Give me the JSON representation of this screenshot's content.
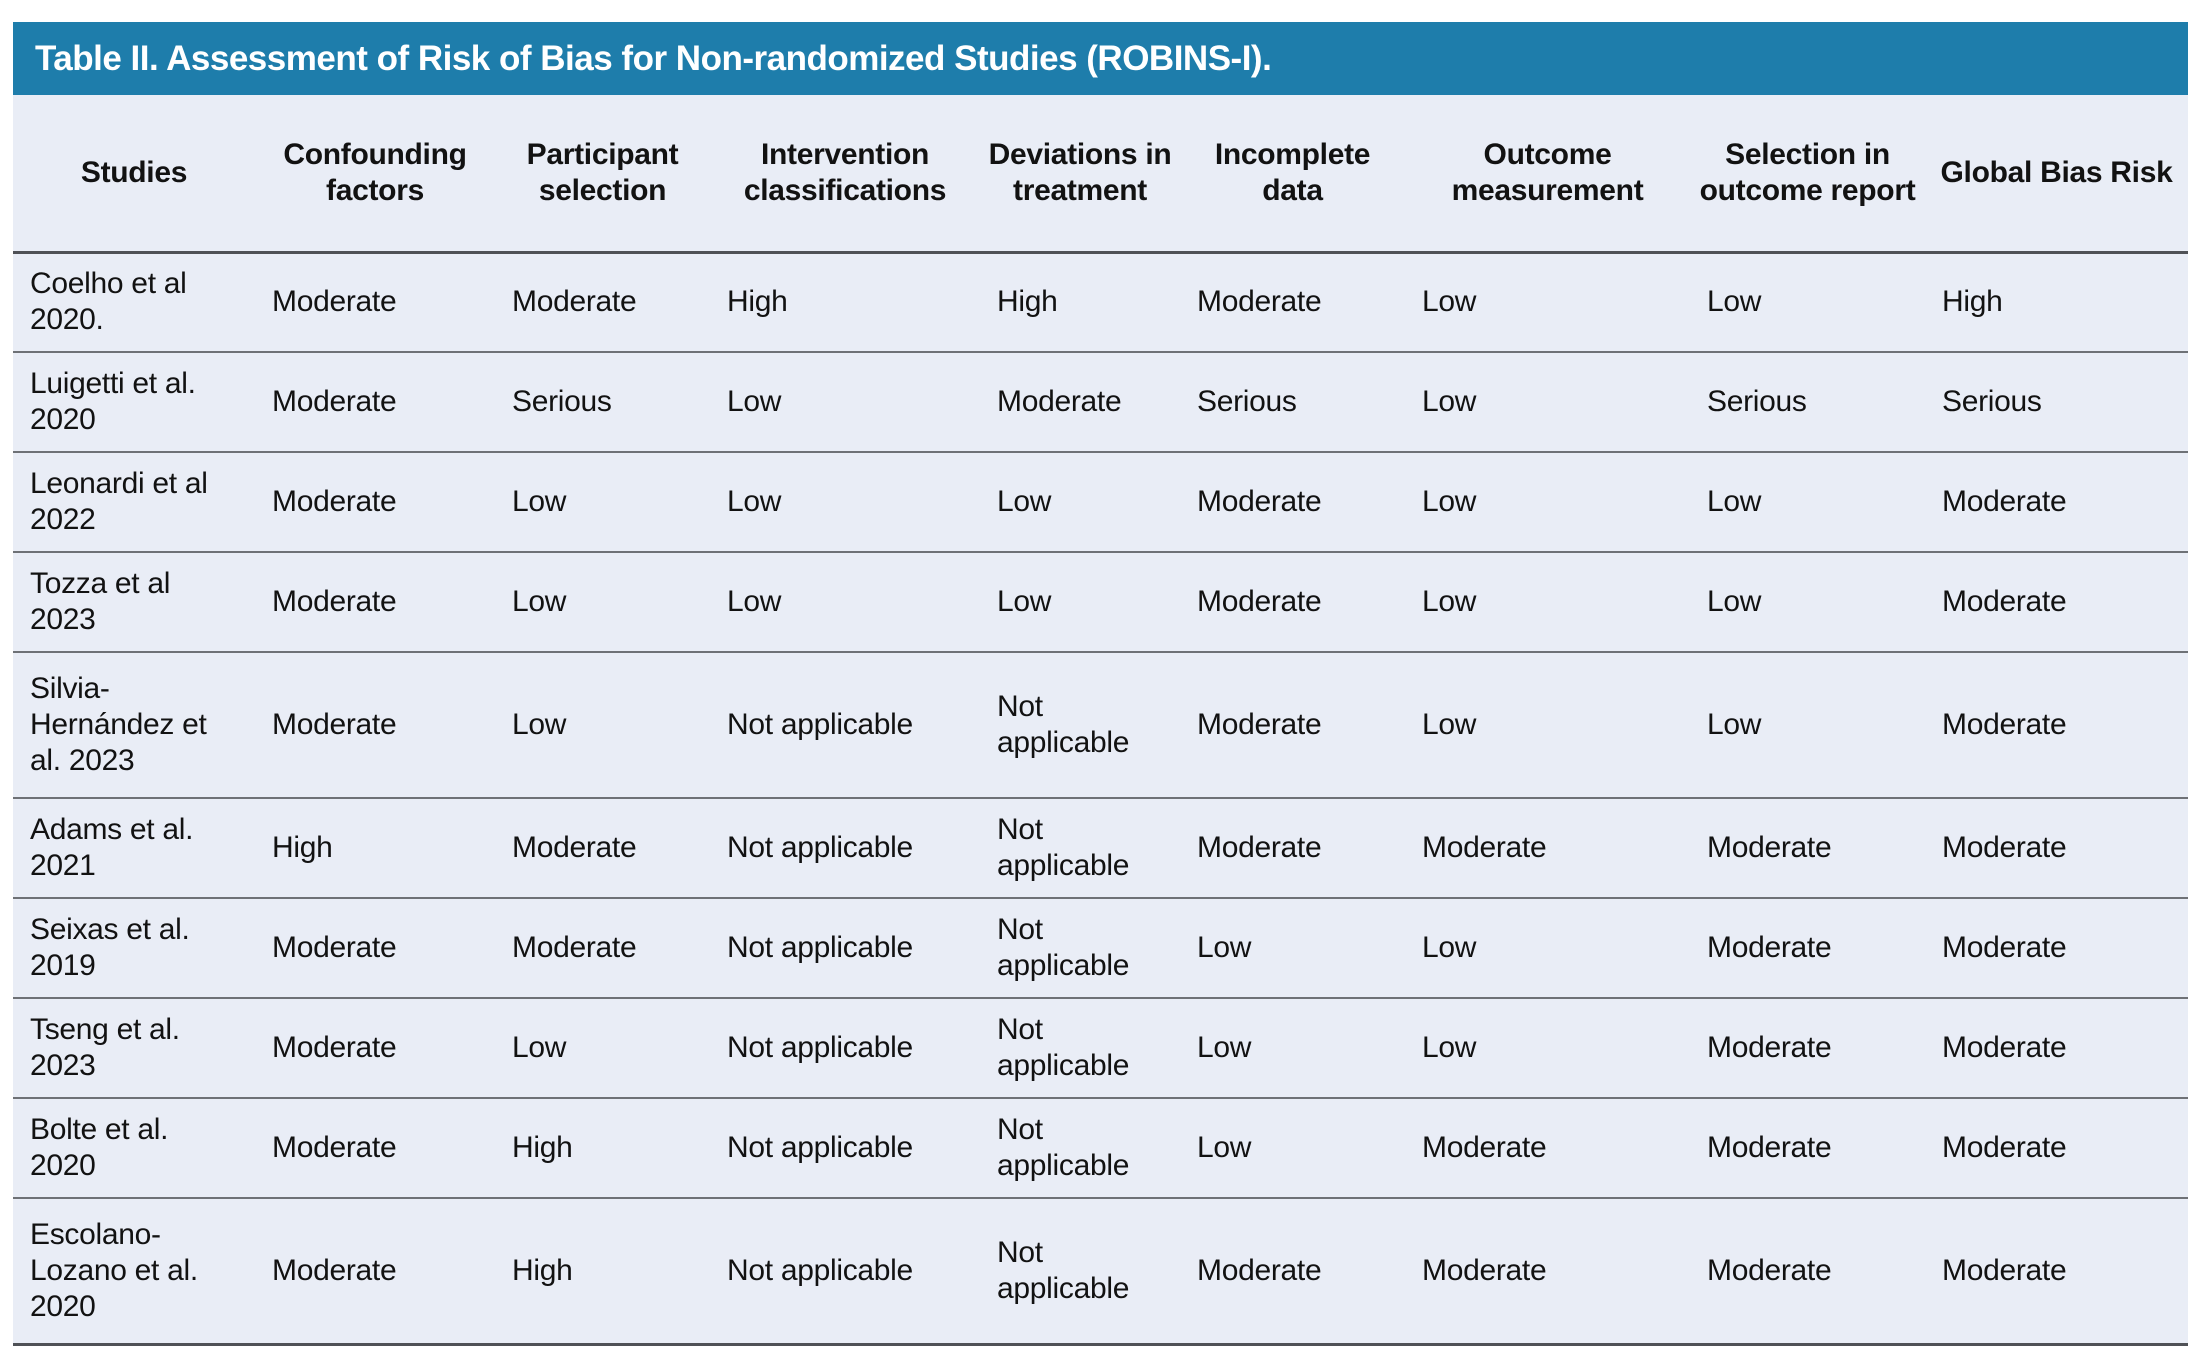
{
  "title": "Table II. Assessment of Risk of Bias for Non-randomized Studies (ROBINS-I).",
  "colors": {
    "header_bar": "#1e7dab",
    "table_bg": "#e9edf6",
    "text": "#121212",
    "title_text": "#ffffff",
    "separator": "#6e7176",
    "separator_strong": "#4f5156"
  },
  "table": {
    "columns": [
      "Studies",
      "Confounding factors",
      "Participant selection",
      "Intervention classifications",
      "Deviations in treatment",
      "Incomplete data",
      "Outcome measurement",
      "Selection in outcome report",
      "Global Bias Risk"
    ],
    "rows": [
      {
        "study": "Coelho et al 2020.",
        "values": [
          "Moderate",
          "Moderate",
          "High",
          "High",
          "Moderate",
          "Low",
          "Low",
          "High"
        ]
      },
      {
        "study": "Luigetti et al. 2020",
        "values": [
          "Moderate",
          "Serious",
          "Low",
          "Moderate",
          "Serious",
          "Low",
          "Serious",
          "Serious"
        ]
      },
      {
        "study": "Leonardi et al 2022",
        "values": [
          "Moderate",
          "Low",
          "Low",
          "Low",
          "Moderate",
          "Low",
          "Low",
          "Moderate"
        ]
      },
      {
        "study": "Tozza et al 2023",
        "values": [
          "Moderate",
          "Low",
          "Low",
          "Low",
          "Moderate",
          "Low",
          "Low",
          "Moderate"
        ]
      },
      {
        "study": "Silvia-Hernández et al. 2023",
        "values": [
          "Moderate",
          "Low",
          "Not applicable",
          "Not applicable",
          "Moderate",
          "Low",
          "Low",
          "Moderate"
        ]
      },
      {
        "study": "Adams et al. 2021",
        "values": [
          "High",
          "Moderate",
          "Not applicable",
          "Not applicable",
          "Moderate",
          "Moderate",
          "Moderate",
          "Moderate"
        ]
      },
      {
        "study": "Seixas et al. 2019",
        "values": [
          "Moderate",
          "Moderate",
          "Not applicable",
          "Not applicable",
          "Low",
          "Low",
          "Moderate",
          "Moderate"
        ]
      },
      {
        "study": "Tseng et al. 2023",
        "values": [
          "Moderate",
          "Low",
          "Not applicable",
          "Not applicable",
          "Low",
          "Low",
          "Moderate",
          "Moderate"
        ]
      },
      {
        "study": "Bolte et al. 2020",
        "values": [
          "Moderate",
          "High",
          "Not applicable",
          "Not applicable",
          "Low",
          "Moderate",
          "Moderate",
          "Moderate"
        ]
      },
      {
        "study": "Escolano-Lozano et al. 2020",
        "values": [
          "Moderate",
          "High",
          "Not applicable",
          "Not applicable",
          "Moderate",
          "Moderate",
          "Moderate",
          "Moderate"
        ]
      }
    ]
  }
}
